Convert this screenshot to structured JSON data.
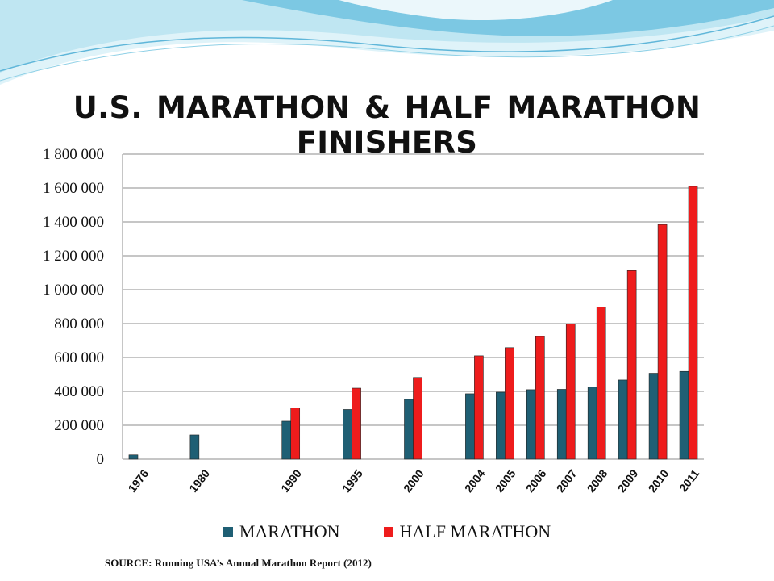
{
  "title": "U.S. MARATHON & HALF MARATHON FINISHERS",
  "source": "SOURCE: Running USA’s Annual Marathon Report (2012)",
  "colors": {
    "marathon": "#1F5F74",
    "half_marathon": "#EE1C1C",
    "grid": "#8C8C8C",
    "banner_light": "#BFE6F2",
    "banner_dark": "#5FB6D9"
  },
  "chart_data": {
    "type": "bar",
    "title": "U.S. MARATHON & HALF MARATHON FINISHERS",
    "xlabel": "",
    "ylabel": "",
    "ylim": [
      0,
      1800000
    ],
    "yticks": [
      0,
      200000,
      400000,
      600000,
      800000,
      1000000,
      1200000,
      1400000,
      1600000,
      1800000
    ],
    "ytick_labels": [
      "0",
      "200 000",
      "400 000",
      "600 000",
      "800 000",
      "1 000 000",
      "1 200 000",
      "1 400 000",
      "1 600 000",
      "1 800 000"
    ],
    "grid": true,
    "legend_position": "bottom",
    "categories": [
      "1976",
      "1980",
      "1990",
      "1995",
      "2000",
      "2004",
      "2005",
      "2006",
      "2007",
      "2008",
      "2009",
      "2010",
      "2011"
    ],
    "series": [
      {
        "name": "MARATHON",
        "values": [
          25000,
          143000,
          224000,
          293000,
          353000,
          386000,
          395000,
          410000,
          412000,
          425000,
          467000,
          507000,
          518000
        ]
      },
      {
        "name": "HALF MARATHON",
        "values": [
          null,
          null,
          303000,
          419000,
          482000,
          610000,
          658000,
          724000,
          797000,
          898000,
          1113000,
          1385000,
          1610000
        ]
      }
    ]
  }
}
